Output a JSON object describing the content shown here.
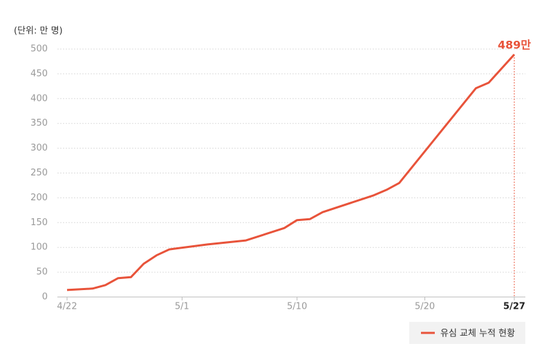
{
  "chart_data": {
    "type": "line",
    "y_label": "(단위: 만 명)",
    "x": [
      "4/22",
      "4/24",
      "4/25",
      "4/26",
      "4/27",
      "4/28",
      "4/29",
      "4/30",
      "5/3",
      "5/6",
      "5/9",
      "5/10",
      "5/11",
      "5/12",
      "5/16",
      "5/17",
      "5/18",
      "5/24",
      "5/25",
      "5/27"
    ],
    "series": [
      {
        "name": "유심 교체 누적 현황",
        "color": "#e8533a",
        "values": [
          14,
          17,
          24,
          38,
          40,
          67,
          84,
          96,
          106,
          114,
          139,
          155,
          157,
          171,
          205,
          216,
          230,
          421,
          432,
          489
        ]
      }
    ],
    "xticks": [
      "4/22",
      "5/1",
      "5/10",
      "5/20",
      "5/27"
    ],
    "ylim": [
      0,
      500
    ],
    "yticks": [
      0,
      50,
      100,
      150,
      200,
      250,
      300,
      350,
      400,
      450,
      500
    ],
    "grid": true,
    "annotation": "489만",
    "legend": "bottom-right"
  }
}
